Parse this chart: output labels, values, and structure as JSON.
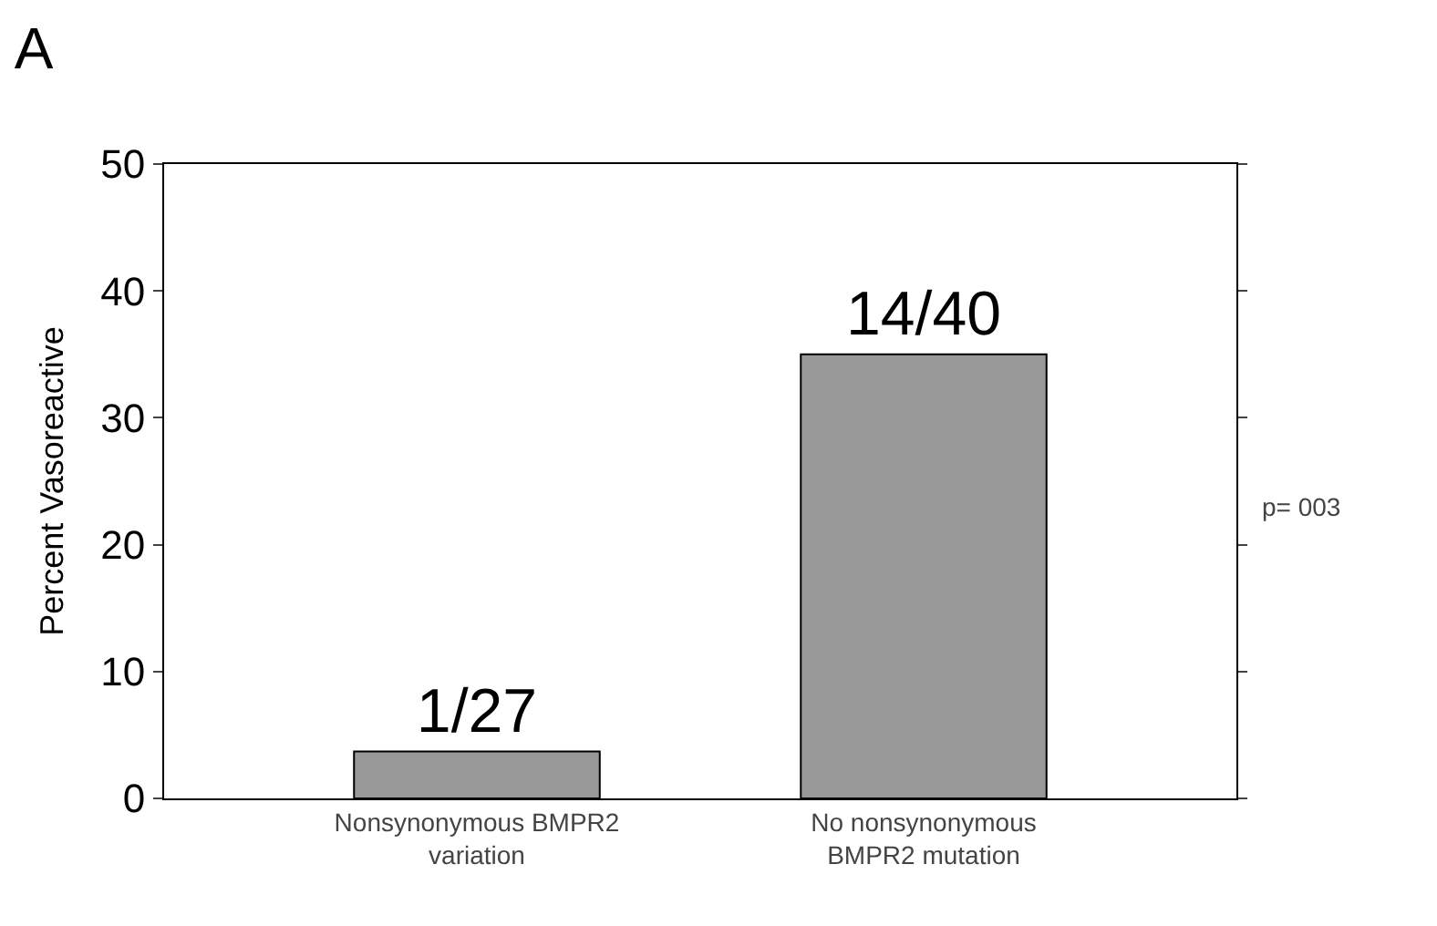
{
  "chart_data": {
    "type": "bar",
    "title": "A",
    "ylabel": "Percent Vasoreactive",
    "categories": [
      "Nonsynonymous BMPR2\nvariation",
      "No nonsynonymous\nBMPR2 mutation"
    ],
    "values": [
      3.7,
      35
    ],
    "value_labels": [
      "1/27",
      "14/40"
    ],
    "color": "#999999",
    "ylim": [
      0,
      50
    ],
    "yticks": [
      0,
      10,
      20,
      30,
      40,
      50
    ],
    "annotations": [
      "p= 003"
    ]
  }
}
